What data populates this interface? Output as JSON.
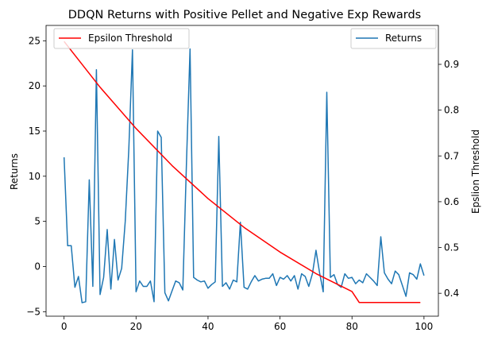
{
  "chart_data": {
    "type": "line",
    "title": "DDQN Returns with Positive Pellet and Negative Exp Rewards",
    "xlabel": "",
    "ylabel": "Returns",
    "y2label": "Epslion Threshold",
    "xlim": [
      -5,
      104
    ],
    "ylim": [
      -5.5,
      26.7
    ],
    "y2lim": [
      0.35,
      0.985
    ],
    "x_ticks": [
      "0",
      "20",
      "40",
      "60",
      "80",
      "100"
    ],
    "y_ticks": [
      "−5",
      "0",
      "5",
      "10",
      "15",
      "20",
      "25"
    ],
    "y2_ticks": [
      "0.4",
      "0.5",
      "0.6",
      "0.7",
      "0.8",
      "0.9"
    ],
    "legend_left": "top-left",
    "legend_right": "top-right",
    "series": [
      {
        "name": "Returns",
        "axis": "left",
        "color": "#1f77b4",
        "values": [
          12.1,
          2.3,
          2.3,
          -2.3,
          -1.1,
          -4.0,
          -3.9,
          9.6,
          -2.2,
          21.8,
          -3.1,
          -1.2,
          4.1,
          -2.5,
          3.0,
          -1.5,
          -0.2,
          5.0,
          13.0,
          24.0,
          -2.8,
          -1.6,
          -2.2,
          -2.2,
          -1.6,
          -3.9,
          15.0,
          14.3,
          -2.9,
          -3.8,
          -2.7,
          -1.6,
          -1.8,
          -2.6,
          11.5,
          24.1,
          -1.2,
          -1.5,
          -1.7,
          -1.6,
          -2.4,
          -2.0,
          -1.7,
          14.4,
          -2.2,
          -1.8,
          -2.5,
          -1.5,
          -1.7,
          4.9,
          -2.3,
          -2.5,
          -1.7,
          -1.0,
          -1.6,
          -1.4,
          -1.3,
          -1.3,
          -0.8,
          -2.1,
          -1.2,
          -1.4,
          -1.0,
          -1.6,
          -1.0,
          -2.5,
          -0.8,
          -1.1,
          -2.2,
          -0.8,
          1.8,
          -0.7,
          -2.8,
          19.3,
          -1.2,
          -0.9,
          -2.0,
          -2.3,
          -0.8,
          -1.3,
          -1.2,
          -1.9,
          -1.5,
          -1.8,
          -0.8,
          -1.2,
          -1.6,
          -2.1,
          3.3,
          -0.7,
          -1.4,
          -1.9,
          -0.5,
          -0.9,
          -2.1,
          -3.3,
          -0.7,
          -0.9,
          -1.4,
          0.3,
          -1.0
        ]
      },
      {
        "name": "Epsilon Threshold",
        "axis": "right",
        "color": "#ff0000",
        "x": [
          0,
          10,
          20,
          30,
          40,
          50,
          60,
          70,
          80,
          82,
          99
        ],
        "values": [
          0.95,
          0.85,
          0.76,
          0.679,
          0.607,
          0.544,
          0.49,
          0.443,
          0.404,
          0.38,
          0.38
        ]
      }
    ]
  }
}
